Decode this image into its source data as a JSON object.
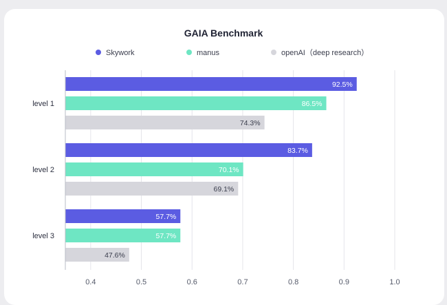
{
  "chart_data": {
    "type": "bar",
    "orientation": "horizontal",
    "title": "GAIA Benchmark",
    "categories": [
      "level 1",
      "level 2",
      "level 3"
    ],
    "series": [
      {
        "name": "Skywork",
        "values": [
          92.5,
          83.7,
          57.7
        ],
        "labels": [
          "92.5%",
          "83.7%",
          "57.7%"
        ],
        "color": "#5b5ce2"
      },
      {
        "name": "manus",
        "values": [
          86.5,
          70.1,
          57.7
        ],
        "labels": [
          "86.5%",
          "70.1%",
          "57.7%"
        ],
        "color": "#6ee6c3"
      },
      {
        "name": "openAI（deep research）",
        "values": [
          74.3,
          69.1,
          47.6
        ],
        "labels": [
          "74.3%",
          "69.1%",
          "47.6%"
        ],
        "color": "#d6d6dc"
      }
    ],
    "xticks": [
      "0.4",
      "0.5",
      "0.6",
      "0.7",
      "0.8",
      "0.9",
      "1.0"
    ],
    "xlim": [
      0.35,
      1.0
    ],
    "grid": "vertical",
    "legend_position": "top"
  }
}
